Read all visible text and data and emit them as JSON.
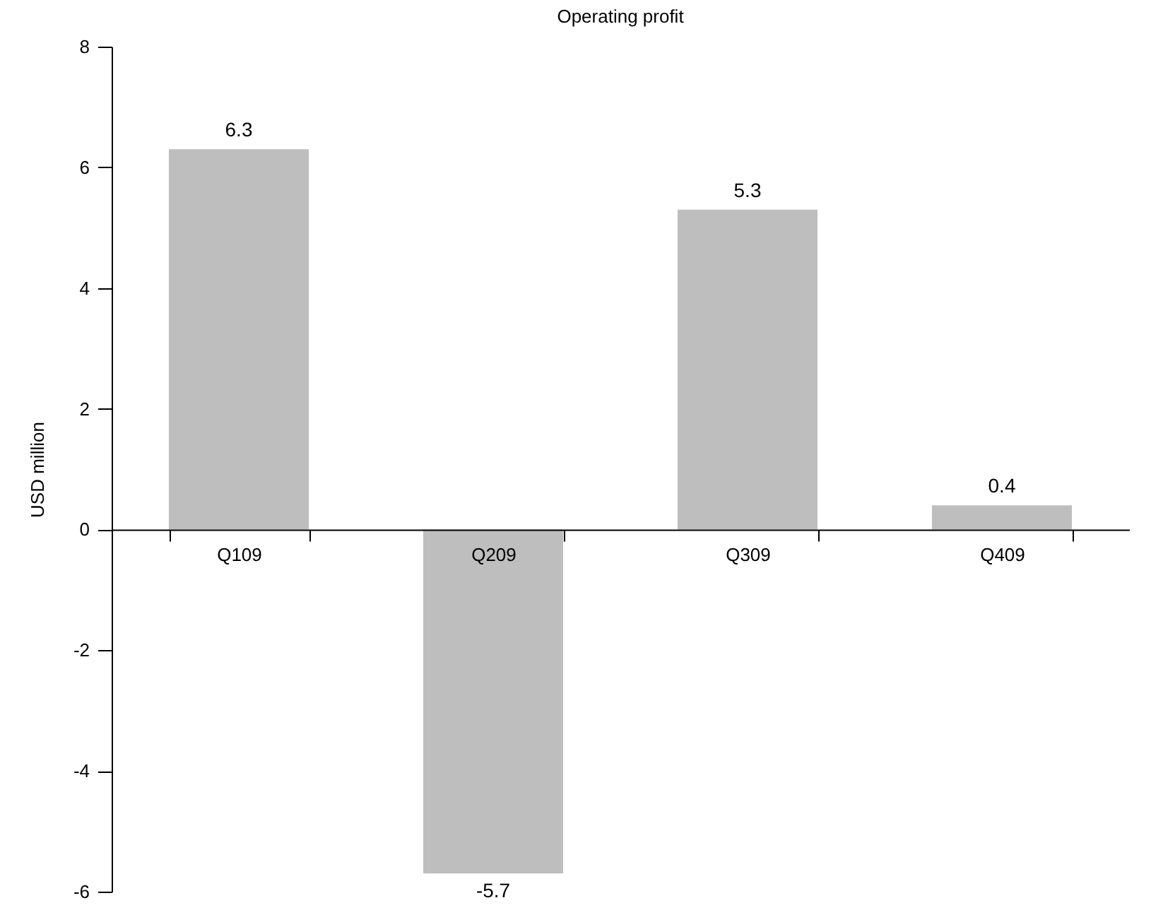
{
  "chart_data": {
    "type": "bar",
    "title": "Operating profit",
    "ylabel": "USD million",
    "categories": [
      "Q109",
      "Q209",
      "Q309",
      "Q409"
    ],
    "values": [
      6.3,
      -5.7,
      5.3,
      0.4
    ],
    "color": "#bebebe",
    "ylim": [
      -6,
      8
    ],
    "yticks": [
      -6,
      -4,
      -2,
      0,
      2,
      4,
      6,
      8
    ],
    "grid": false,
    "data_labels": true
  }
}
